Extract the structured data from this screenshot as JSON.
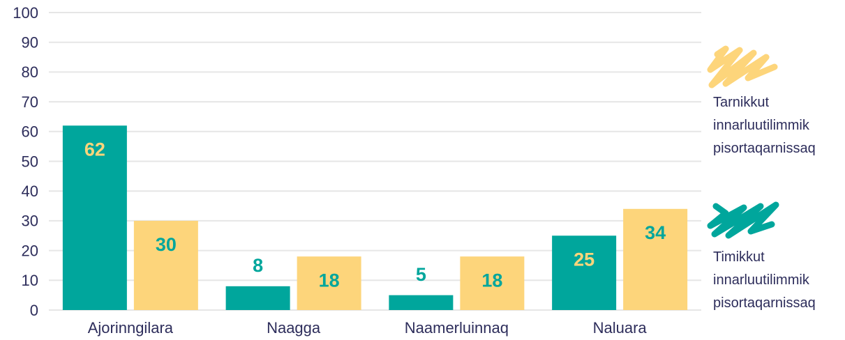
{
  "chart_data": {
    "type": "bar",
    "categories": [
      "Ajorinngilara",
      "Naagga",
      "Naamerluinnaq",
      "Naluara"
    ],
    "series": [
      {
        "name": "Timikkut innarluutilimmik pisortaqarnissaq",
        "color": "#00a69c",
        "values": [
          62,
          8,
          5,
          25
        ]
      },
      {
        "name": "Tarnikkut innarluutilimmik pisortaqarnissaq",
        "color": "#fdd57b",
        "values": [
          30,
          18,
          18,
          34
        ]
      }
    ],
    "ylim": [
      0,
      100
    ],
    "yticks": [
      0,
      10,
      20,
      30,
      40,
      50,
      60,
      70,
      80,
      90,
      100
    ],
    "grid": true,
    "legend": "right"
  }
}
